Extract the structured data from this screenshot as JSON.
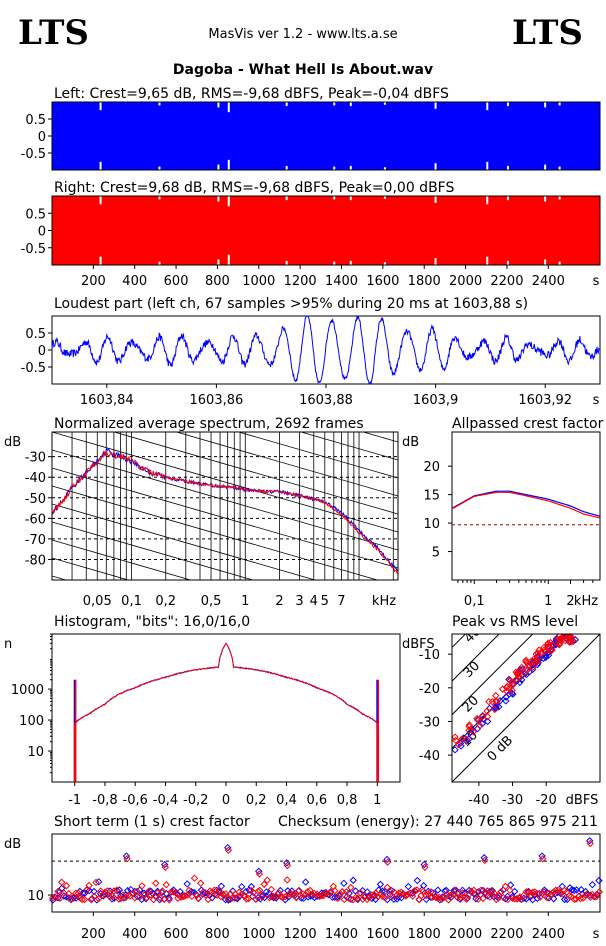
{
  "header": {
    "logo_left": "LTS",
    "logo_right": "LTS",
    "app_title": "MasVis ver 1.2 - www.lts.a.se",
    "file_title": "Dagoba - What Hell Is About.wav"
  },
  "colors": {
    "left": "#0000ff",
    "right": "#ff0000",
    "ref_line": "#aa0000"
  },
  "chart_data": [
    {
      "id": "left_waveform",
      "type": "area",
      "title": "Left: Crest=9,65 dB, RMS=-9,68 dBFS, Peak=-0,04 dBFS",
      "ylim": [
        -1,
        1
      ],
      "ytick_labels": [
        "0.5",
        "0",
        "-0.5"
      ],
      "yticks": [
        0.5,
        0,
        -0.5
      ],
      "xlim": [
        0,
        2650
      ],
      "crest_db": 9.65,
      "rms_dbfs": -9.68,
      "peak_dbfs": -0.04
    },
    {
      "id": "right_waveform",
      "type": "area",
      "title": "Right: Crest=9,68 dB, RMS=-9,68 dBFS, Peak=0,00 dBFS",
      "ylim": [
        -1,
        1
      ],
      "ytick_labels": [
        "0.5",
        "0",
        "-0.5"
      ],
      "yticks": [
        0.5,
        0,
        -0.5
      ],
      "xlim": [
        0,
        2650
      ],
      "xticks": [
        200,
        400,
        600,
        800,
        1000,
        1200,
        1400,
        1600,
        1800,
        2000,
        2200,
        2400
      ],
      "xtick_labels": [
        "200",
        "400",
        "600",
        "800",
        "1000",
        "1200",
        "1400",
        "1600",
        "1800",
        "2000",
        "2200",
        "2400"
      ],
      "xunit": "s",
      "crest_db": 9.68,
      "rms_dbfs": -9.68,
      "peak_dbfs": 0.0
    },
    {
      "id": "loudest_part",
      "type": "line",
      "title": "Loudest part (left  ch, 67 samples >95% during 20 ms at 1603,88 s)",
      "xlim": [
        1603.83,
        1603.93
      ],
      "ylim": [
        -1,
        1
      ],
      "xticks": [
        1603.84,
        1603.86,
        1603.88,
        1603.9,
        1603.92
      ],
      "xtick_labels": [
        "1603,84",
        "1603,86",
        "1603,88",
        "1603,9",
        "1603,92"
      ],
      "xunit": "s",
      "yticks": [
        0.5,
        0,
        -0.5
      ],
      "ytick_labels": [
        "0.5",
        "0",
        "-0.5"
      ],
      "envelope_x": [
        1603.83,
        1603.845,
        1603.855,
        1603.865,
        1603.87,
        1603.875,
        1603.88,
        1603.885,
        1603.89,
        1603.895,
        1603.9,
        1603.905,
        1603.91,
        1603.92,
        1603.93
      ],
      "envelope_amp": [
        0.22,
        0.3,
        0.35,
        0.3,
        0.55,
        0.85,
        0.98,
        0.95,
        0.85,
        0.65,
        0.5,
        0.35,
        0.25,
        0.22,
        0.2
      ]
    },
    {
      "id": "spectrum",
      "type": "line",
      "title": "Normalized average spectrum, 2692 frames",
      "ylabel": "dB",
      "ylim": [
        -90,
        -18
      ],
      "yticks": [
        -30,
        -40,
        -50,
        -60,
        -70,
        -80
      ],
      "ytick_labels": [
        "-30",
        "-40",
        "-50",
        "-60",
        "-70",
        "-80"
      ],
      "xscale": "log",
      "xlim": [
        0.02,
        22
      ],
      "xticks": [
        0.05,
        0.1,
        0.2,
        0.5,
        1,
        2,
        3,
        4,
        5,
        7
      ],
      "xtick_labels": [
        "0,05",
        "0,1",
        "0,2",
        "0,5",
        "1",
        "2",
        "3",
        "4",
        "5",
        "7"
      ],
      "xunit": "kHz",
      "x": [
        0.02,
        0.025,
        0.03,
        0.04,
        0.05,
        0.06,
        0.08,
        0.1,
        0.12,
        0.15,
        0.2,
        0.3,
        0.5,
        0.8,
        1,
        1.5,
        2,
        3,
        5,
        7,
        10,
        15,
        22
      ],
      "series": [
        {
          "values": [
            -57,
            -52,
            -45,
            -38,
            -32,
            -27,
            -30,
            -32,
            -35,
            -38,
            -40,
            -42,
            -44,
            -45,
            -46,
            -47,
            -47,
            -49,
            -52,
            -57,
            -66,
            -75,
            -86
          ]
        },
        {
          "values": [
            -57,
            -52,
            -45,
            -38,
            -32,
            -28,
            -30,
            -32,
            -35,
            -38,
            -40,
            -42,
            -44,
            -45,
            -46,
            -47,
            -47,
            -49,
            -52,
            -58,
            -67,
            -76,
            -87
          ]
        }
      ]
    },
    {
      "id": "allpassed_crest",
      "type": "line",
      "title": "Allpassed crest factor",
      "ylabel": "dB",
      "ylim": [
        0,
        26
      ],
      "yticks": [
        20,
        15,
        10,
        5
      ],
      "ytick_labels": [
        "20",
        "15",
        "10",
        "5"
      ],
      "xscale": "log",
      "xlim": [
        0.05,
        5
      ],
      "xticks": [
        0.1,
        1,
        2
      ],
      "xtick_labels": [
        "0,1",
        "1",
        "2"
      ],
      "xunit": "kHz",
      "reference_level": 9.7,
      "x": [
        0.05,
        0.1,
        0.2,
        0.3,
        0.5,
        1,
        2,
        3,
        5
      ],
      "series": [
        {
          "values": [
            12.6,
            14.8,
            15.6,
            15.6,
            15.0,
            14.2,
            13.0,
            12.0,
            11.2
          ]
        },
        {
          "values": [
            12.5,
            14.7,
            15.4,
            15.4,
            14.8,
            13.9,
            12.6,
            11.6,
            10.9
          ]
        }
      ]
    },
    {
      "id": "histogram",
      "type": "line",
      "title": "Histogram, \"bits\": 16,0/16,0",
      "ylabel": "n",
      "yscale": "log",
      "ylim": [
        1,
        60000
      ],
      "yticks": [
        10,
        100,
        1000
      ],
      "ytick_labels": [
        "10",
        "100",
        "1000"
      ],
      "xlim": [
        -1.15,
        1.15
      ],
      "xticks": [
        -1,
        -0.8,
        -0.6,
        -0.4,
        -0.2,
        0,
        0.2,
        0.4,
        0.6,
        0.8,
        1
      ],
      "xtick_labels": [
        "-1",
        "-0,8",
        "-0,6",
        "-0,4",
        "-0,2",
        "0",
        "0,2",
        "0,4",
        "0,6",
        "0,8",
        "1"
      ],
      "x": [
        -1,
        -0.9,
        -0.8,
        -0.6,
        -0.4,
        -0.2,
        -0.05,
        0,
        0.05,
        0.2,
        0.4,
        0.6,
        0.8,
        0.9,
        1
      ],
      "values": [
        80,
        160,
        320,
        1100,
        2400,
        4200,
        5200,
        30000,
        5200,
        4200,
        2400,
        1100,
        320,
        160,
        80
      ],
      "clip_peak": 2000
    },
    {
      "id": "peak_vs_rms",
      "type": "scatter",
      "title": "Peak vs RMS level",
      "ylabel": "dBFS",
      "xunit": "dBFS",
      "xlim": [
        -48,
        -4
      ],
      "ylim": [
        -48,
        -4
      ],
      "xticks": [
        -40,
        -30,
        -20
      ],
      "xtick_labels": [
        "-40",
        "-30",
        "-20"
      ],
      "yticks": [
        -10,
        -20,
        -30,
        -40
      ],
      "ytick_labels": [
        "-10",
        "-20",
        "-30",
        "-40"
      ],
      "crest_lines": [
        0,
        10,
        20,
        30,
        40
      ],
      "crest_line_labels": [
        "0 dB",
        "10",
        "20",
        "30",
        "40"
      ],
      "x": [
        -46,
        -44,
        -42,
        -40,
        -38,
        -36,
        -34,
        -32,
        -31,
        -30,
        -29,
        -28,
        -27,
        -26,
        -25,
        -24,
        -23,
        -22,
        -21,
        -20,
        -19,
        -18,
        -17,
        -16,
        -15,
        -14,
        -13,
        -12
      ],
      "series": [
        {
          "values": [
            -37,
            -35,
            -33,
            -31,
            -29,
            -26,
            -25,
            -23,
            -21,
            -19,
            -19,
            -17,
            -16,
            -15,
            -14,
            -13,
            -12,
            -11,
            -10,
            -9,
            -8,
            -7,
            -7,
            -6,
            -5,
            -5,
            -5,
            -5
          ]
        },
        {
          "values": [
            -36,
            -34,
            -32,
            -30,
            -28,
            -25,
            -23,
            -21,
            -20,
            -18,
            -17,
            -16,
            -15,
            -14,
            -13,
            -12,
            -11,
            -10,
            -9,
            -8,
            -8,
            -7,
            -6,
            -6,
            -5,
            -5,
            -5,
            -5
          ]
        }
      ]
    },
    {
      "id": "short_term_crest",
      "type": "scatter",
      "title": "Short term (1 s) crest factor",
      "annotation": "Checksum (energy):  27 440 765 865 975 211",
      "ylabel": "dB",
      "ylim": [
        5,
        28
      ],
      "yticks": [
        10
      ],
      "ytick_labels": [
        "10"
      ],
      "reference_level": 20,
      "xlim": [
        0,
        2650
      ],
      "xticks": [
        200,
        400,
        600,
        800,
        1000,
        1200,
        1400,
        1600,
        1800,
        2000,
        2200,
        2400
      ],
      "xtick_labels": [
        "200",
        "400",
        "600",
        "800",
        "1000",
        "1200",
        "1400",
        "1600",
        "1800",
        "2000",
        "2200",
        "2400"
      ],
      "xunit": "s",
      "outliers_x": [
        360,
        545,
        850,
        1000,
        1135,
        1620,
        1800,
        2090,
        2370,
        2600
      ],
      "outliers_y": [
        21.5,
        19,
        24,
        17,
        19.5,
        20.5,
        19,
        21,
        21.5,
        26
      ]
    }
  ]
}
